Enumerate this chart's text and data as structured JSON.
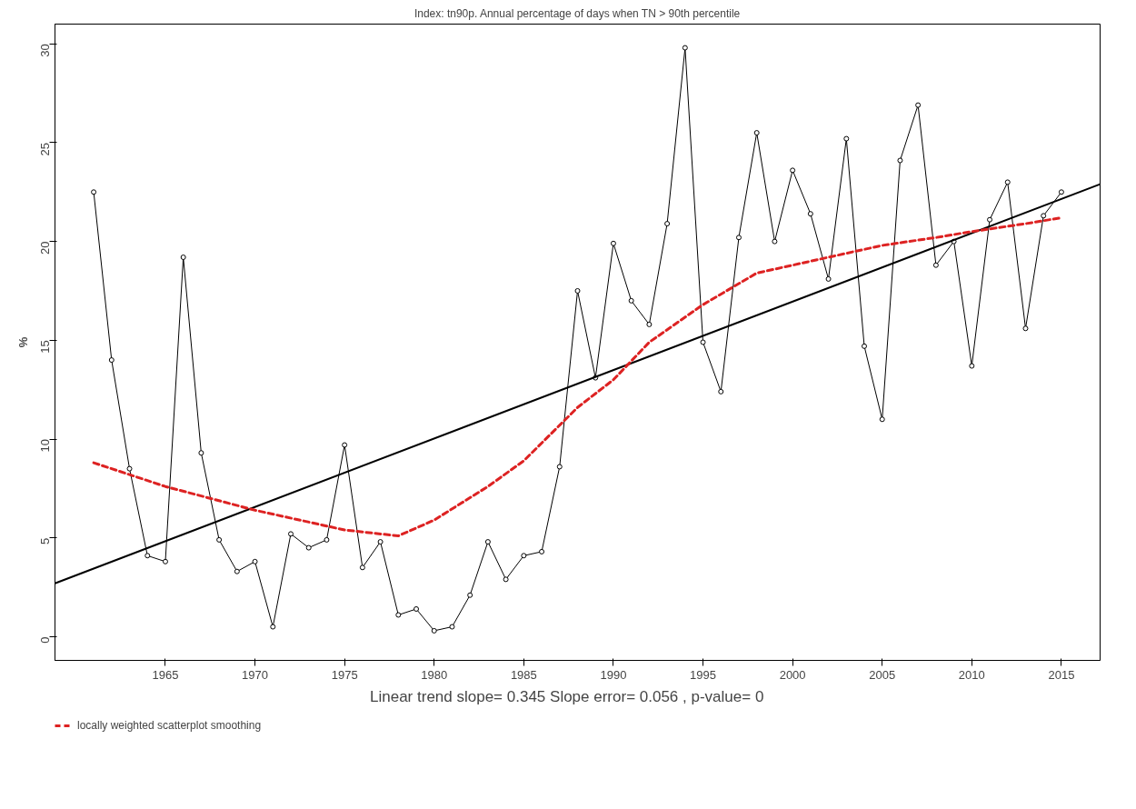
{
  "chart_data": {
    "type": "line",
    "title": "Index: tn90p. Annual percentage of days when TN > 90th percentile",
    "ylabel": "%",
    "x": [
      1961,
      1962,
      1963,
      1964,
      1965,
      1966,
      1967,
      1968,
      1969,
      1970,
      1971,
      1972,
      1973,
      1974,
      1975,
      1976,
      1977,
      1978,
      1979,
      1980,
      1981,
      1982,
      1983,
      1984,
      1985,
      1986,
      1987,
      1988,
      1989,
      1990,
      1991,
      1992,
      1993,
      1994,
      1995,
      1996,
      1997,
      1998,
      1999,
      2000,
      2001,
      2002,
      2003,
      2004,
      2005,
      2006,
      2007,
      2008,
      2009,
      2010,
      2011,
      2012,
      2013,
      2014,
      2015
    ],
    "series": [
      {
        "color": "#000000",
        "marker": "circle",
        "line_style": "solid",
        "values": [
          22.5,
          14.0,
          8.5,
          4.1,
          3.8,
          19.2,
          9.3,
          4.9,
          3.3,
          3.8,
          0.5,
          5.2,
          4.5,
          4.9,
          9.7,
          3.5,
          4.8,
          1.1,
          1.4,
          0.3,
          0.5,
          2.1,
          4.8,
          2.9,
          4.1,
          4.3,
          8.6,
          17.5,
          13.1,
          19.9,
          17.0,
          15.8,
          20.9,
          29.8,
          14.9,
          12.4,
          20.2,
          25.5,
          20.0,
          23.6,
          21.4,
          18.1,
          25.2,
          14.7,
          11.0,
          24.1,
          26.9,
          18.8,
          20.0,
          13.7,
          21.1,
          23.0,
          15.6,
          21.3,
          22.5
        ]
      },
      {
        "color": "#000000",
        "marker": "none",
        "line_style": "solid",
        "x": [
          1958.84,
          2017.16
        ],
        "values": [
          2.7,
          22.9
        ]
      },
      {
        "name": "locally weighted scatterplot smoothing",
        "color": "#dd2222",
        "marker": "none",
        "line_style": "dashed",
        "x": [
          1961,
          1965,
          1970,
          1975,
          1978,
          1980,
          1983,
          1985,
          1988,
          1990,
          1992,
          1995,
          1998,
          2000,
          2003,
          2005,
          2008,
          2010,
          2013,
          2015
        ],
        "values": [
          8.8,
          7.6,
          6.4,
          5.4,
          5.1,
          5.9,
          7.6,
          8.9,
          11.6,
          13.0,
          14.9,
          16.8,
          18.4,
          18.8,
          19.4,
          19.8,
          20.2,
          20.5,
          20.9,
          21.2
        ]
      }
    ],
    "xlim": [
      1958.84,
      2017.16
    ],
    "ylim": [
      -1.2,
      31
    ],
    "xticks": [
      1965,
      1970,
      1975,
      1980,
      1985,
      1990,
      1995,
      2000,
      2005,
      2010,
      2015
    ],
    "yticks": [
      0,
      5,
      10,
      15,
      20,
      25,
      30
    ],
    "grid": false,
    "legend": "bottom left",
    "annotations": [
      "Linear trend slope= 0.345    Slope error= 0.056 ,   p-value= 0"
    ]
  }
}
